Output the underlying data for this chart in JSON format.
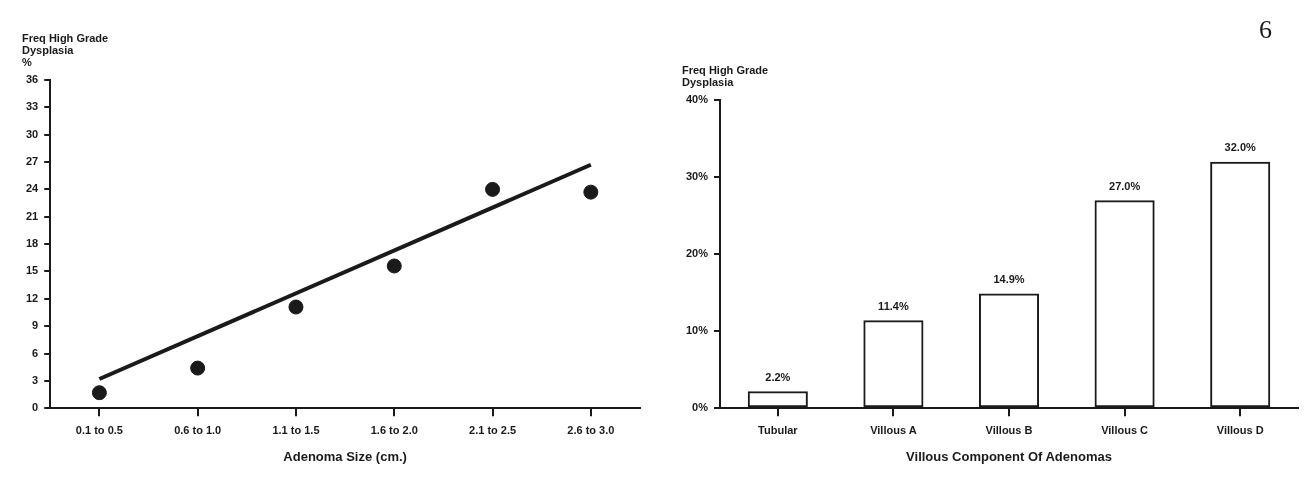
{
  "chart_data": [
    {
      "type": "scatter",
      "ylabel": "Freq High Grade\nDysplasia\n%",
      "xlabel": "Adenoma Size (cm.)",
      "categories": [
        "0.1 to 0.5",
        "0.6 to 1.0",
        "1.1 to 1.5",
        "1.6 to 2.0",
        "2.1 to 2.5",
        "2.6 to 3.0"
      ],
      "ylim": [
        0,
        36
      ],
      "yticks": [
        0,
        3,
        6,
        9,
        12,
        15,
        18,
        21,
        24,
        27,
        30,
        33,
        36
      ],
      "grid": false,
      "legend": false,
      "series": [
        {
          "type": "scatter",
          "color": "#1a1a1a",
          "marker": "circle",
          "values": [
            1.7,
            4.4,
            11.1,
            15.6,
            24.0,
            23.7
          ]
        },
        {
          "type": "line",
          "color": "#1a1a1a",
          "x": [
            "0.1 to 0.5",
            "2.6 to 3.0"
          ],
          "values": [
            3.2,
            26.7
          ]
        }
      ]
    },
    {
      "type": "bar",
      "ylabel": "Freq High Grade\nDysplasia",
      "xlabel": "Villous Component Of Adenomas",
      "categories": [
        "Tubular",
        "Villous A",
        "Villous B",
        "Villous C",
        "Villous D"
      ],
      "values": [
        2.2,
        11.4,
        14.9,
        27.0,
        32.0
      ],
      "color": "#1a1a1a",
      "value_labels": [
        "2.2%",
        "11.4%",
        "14.9%",
        "27.0%",
        "32.0%"
      ],
      "ylim": [
        0,
        40
      ],
      "yticks": [
        {
          "value": 0,
          "label": "0%"
        },
        {
          "value": 10,
          "label": "10%"
        },
        {
          "value": 20,
          "label": "20%"
        },
        {
          "value": 30,
          "label": "30%"
        },
        {
          "value": 40,
          "label": "40%"
        }
      ],
      "grid": false,
      "legend": false,
      "annotations": [
        "6"
      ]
    }
  ]
}
